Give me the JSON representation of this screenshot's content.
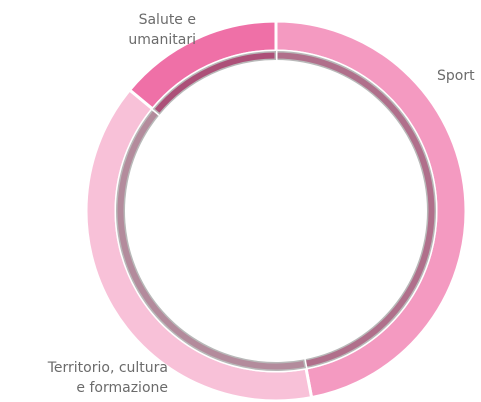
{
  "chart_data": {
    "type": "donut",
    "categories": [
      "Sport",
      "Territorio, cultura\ne formazione",
      "Salute e\numanitari"
    ],
    "values": [
      47,
      39,
      14
    ],
    "colors": [
      "#f49ac1",
      "#f8c1d8",
      "#ef70a7"
    ]
  }
}
